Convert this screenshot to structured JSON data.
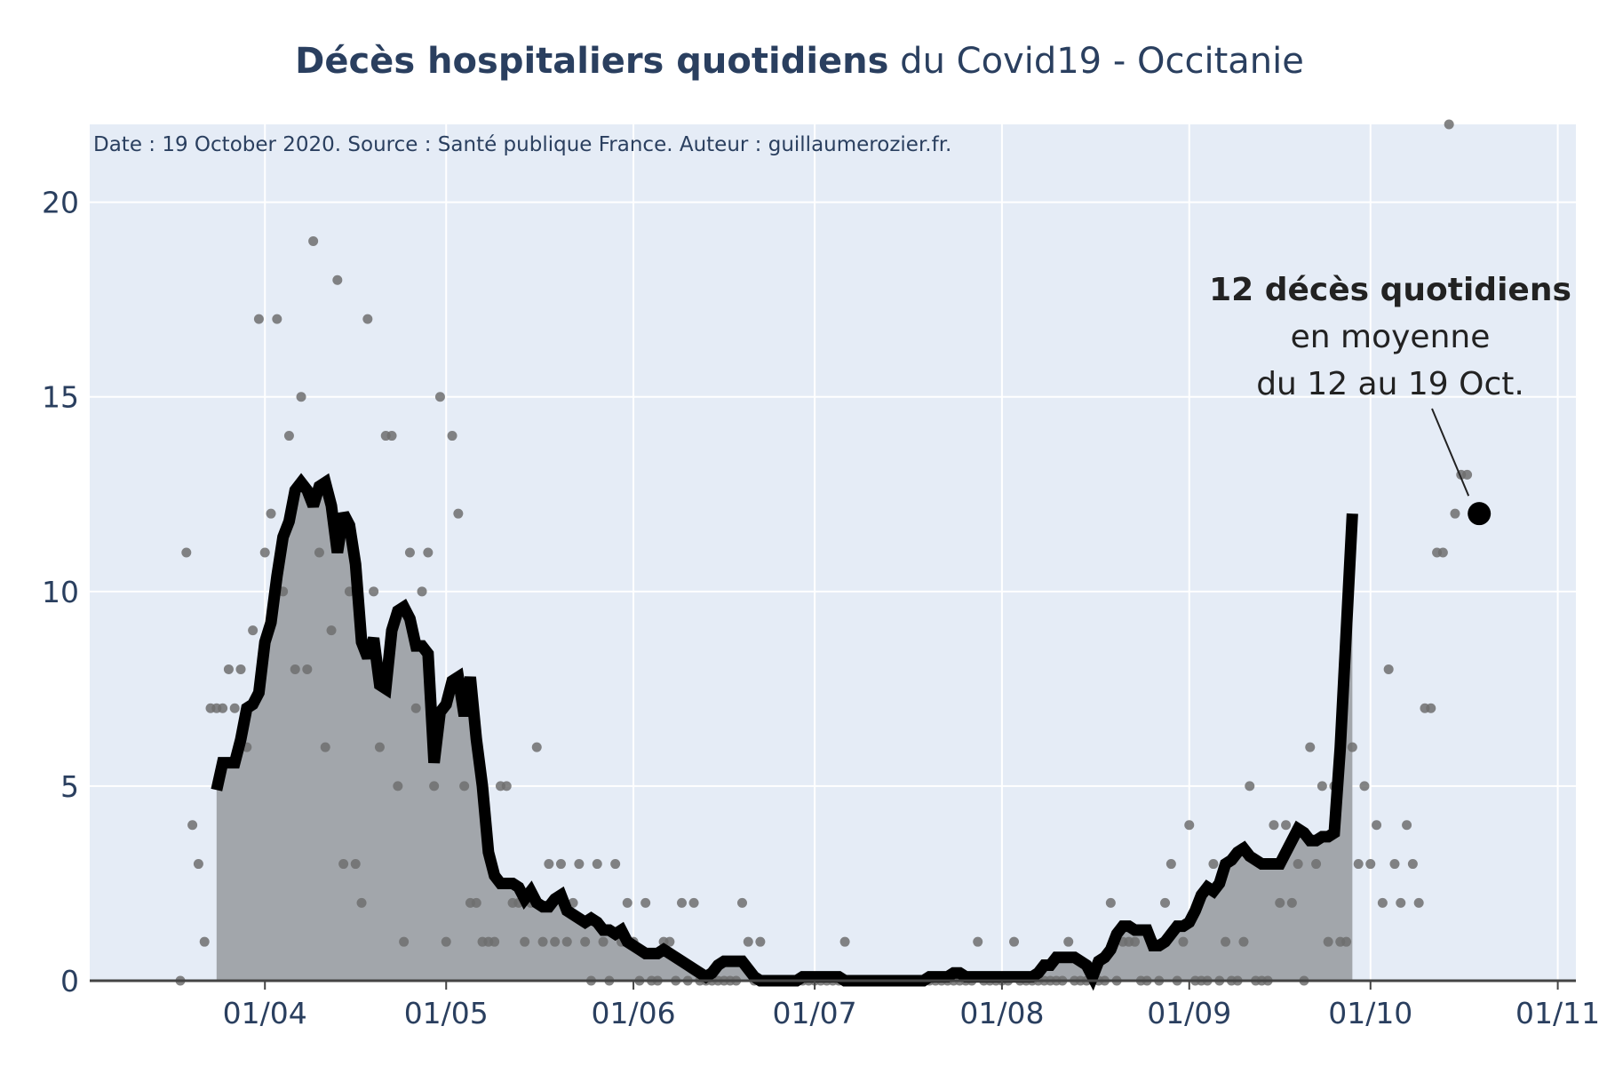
{
  "chart_data": {
    "type": "line",
    "title_bold": "Décès hospitaliers quotidiens",
    "title_rest": " du Covid19 - Occitanie",
    "source_note": "Date : 19 October 2020. Source : Santé publique France. Auteur : guillaumerozier.fr.",
    "xlabel": "",
    "ylabel": "",
    "ylim": [
      0,
      22
    ],
    "xlim": [
      "2020-03-03",
      "2020-11-04"
    ],
    "grid": true,
    "y_ticks": [
      0,
      5,
      10,
      15,
      20
    ],
    "x_ticks": [
      {
        "date": "2020-04-01",
        "label": "01/04"
      },
      {
        "date": "2020-05-01",
        "label": "01/05"
      },
      {
        "date": "2020-06-01",
        "label": "01/06"
      },
      {
        "date": "2020-07-01",
        "label": "01/07"
      },
      {
        "date": "2020-08-01",
        "label": "01/08"
      },
      {
        "date": "2020-09-01",
        "label": "01/09"
      },
      {
        "date": "2020-10-01",
        "label": "01/10"
      },
      {
        "date": "2020-11-01",
        "label": "01/11"
      }
    ],
    "colors": {
      "plot_bg": "#e5ecf6",
      "grid": "#ffffff",
      "area_fill": "#a2a6ab",
      "line": "#000000",
      "dots": "#6e6e6e",
      "text": "#2a3f5f"
    },
    "series": [
      {
        "kind": "daily_points",
        "start_date": "2020-03-18",
        "values": [
          0,
          11,
          4,
          3,
          1,
          7,
          7,
          7,
          8,
          7,
          8,
          6,
          9,
          17,
          11,
          12,
          17,
          10,
          14,
          8,
          15,
          8,
          19,
          11,
          6,
          9,
          18,
          3,
          10,
          3,
          2,
          17,
          10,
          6,
          14,
          14,
          5,
          1,
          11,
          7,
          10,
          11,
          5,
          15,
          1,
          14,
          12,
          5,
          2,
          2,
          1,
          1,
          1,
          5,
          5,
          2,
          2,
          1,
          2,
          6,
          1,
          3,
          1,
          3,
          1,
          2,
          3,
          1,
          0,
          3,
          1,
          0,
          3,
          1,
          2,
          1,
          0,
          2,
          0,
          0,
          1,
          1,
          0,
          2,
          0,
          2,
          0,
          0,
          0,
          0,
          0,
          0,
          0,
          2,
          1,
          0,
          1,
          0,
          0,
          0,
          0,
          0,
          0,
          0,
          0,
          0,
          0,
          0,
          0,
          0,
          1,
          0,
          0,
          0,
          0,
          0,
          0,
          0,
          0,
          0,
          0,
          0,
          0,
          0,
          0,
          0,
          0,
          0,
          0,
          0,
          0,
          0,
          1,
          0,
          0,
          0,
          0,
          0,
          1,
          0,
          0,
          0,
          0,
          0,
          0,
          0,
          0,
          1,
          0,
          0,
          0,
          0,
          0,
          0,
          2,
          0,
          1,
          1,
          1,
          0,
          0,
          1,
          0,
          2,
          3,
          0,
          1,
          4,
          0,
          0,
          0,
          3,
          0,
          1,
          0,
          0,
          1,
          5,
          0,
          0,
          0,
          4,
          2,
          4,
          2,
          3,
          0,
          6,
          3,
          5,
          1,
          5,
          1,
          1,
          6,
          3,
          5,
          3,
          4,
          2,
          8,
          3,
          2,
          4,
          3,
          2,
          7,
          7,
          11,
          11,
          22,
          12,
          13,
          13
        ]
      },
      {
        "kind": "rolling_average",
        "start_date": "2020-03-24",
        "values": [
          4.9,
          5.6,
          5.6,
          5.6,
          6.2,
          7.0,
          7.1,
          7.4,
          8.7,
          9.2,
          10.4,
          11.4,
          11.8,
          12.6,
          12.8,
          12.6,
          12.2,
          12.7,
          12.8,
          12.2,
          11.0,
          12.0,
          11.7,
          10.7,
          8.7,
          8.3,
          8.8,
          7.6,
          7.5,
          9.0,
          9.5,
          9.6,
          9.3,
          8.6,
          8.6,
          8.4,
          5.6,
          6.9,
          7.1,
          7.7,
          7.8,
          6.8,
          7.8,
          6.2,
          5.0,
          3.3,
          2.7,
          2.5,
          2.5,
          2.5,
          2.4,
          2.1,
          2.3,
          2.0,
          1.9,
          1.9,
          2.1,
          2.2,
          1.8,
          1.7,
          1.6,
          1.5,
          1.6,
          1.5,
          1.3,
          1.3,
          1.2,
          1.3,
          1.0,
          0.9,
          0.8,
          0.7,
          0.7,
          0.7,
          0.8,
          0.7,
          0.6,
          0.5,
          0.4,
          0.3,
          0.2,
          0.1,
          0.2,
          0.4,
          0.5,
          0.5,
          0.5,
          0.5,
          0.3,
          0.1,
          0.0,
          0.0,
          0.0,
          0.0,
          0.0,
          0.0,
          0.0,
          0.1,
          0.1,
          0.1,
          0.1,
          0.1,
          0.1,
          0.1,
          0.0,
          0.0,
          0.0,
          0.0,
          0.0,
          0.0,
          0.0,
          0.0,
          0.0,
          0.0,
          0.0,
          0.0,
          0.0,
          0.0,
          0.1,
          0.1,
          0.1,
          0.1,
          0.2,
          0.2,
          0.1,
          0.1,
          0.1,
          0.1,
          0.1,
          0.1,
          0.1,
          0.1,
          0.1,
          0.1,
          0.1,
          0.1,
          0.2,
          0.4,
          0.4,
          0.6,
          0.6,
          0.6,
          0.6,
          0.5,
          0.4,
          0.1,
          0.5,
          0.6,
          0.8,
          1.2,
          1.4,
          1.4,
          1.3,
          1.3,
          1.3,
          0.9,
          0.9,
          1.0,
          1.2,
          1.4,
          1.4,
          1.5,
          1.8,
          2.2,
          2.4,
          2.3,
          2.5,
          3.0,
          3.1,
          3.3,
          3.4,
          3.2,
          3.1,
          3.0,
          3.0,
          3.0,
          3.0,
          3.3,
          3.6,
          3.9,
          3.8,
          3.6,
          3.6,
          3.7,
          3.7,
          3.8,
          6.0,
          9.0,
          12.0
        ]
      }
    ],
    "annotation": {
      "date": "2020-10-19",
      "value": 12,
      "line1": "12 décès quotidiens",
      "line2": "en moyenne",
      "line3": "du 12 au 19 Oct."
    }
  }
}
